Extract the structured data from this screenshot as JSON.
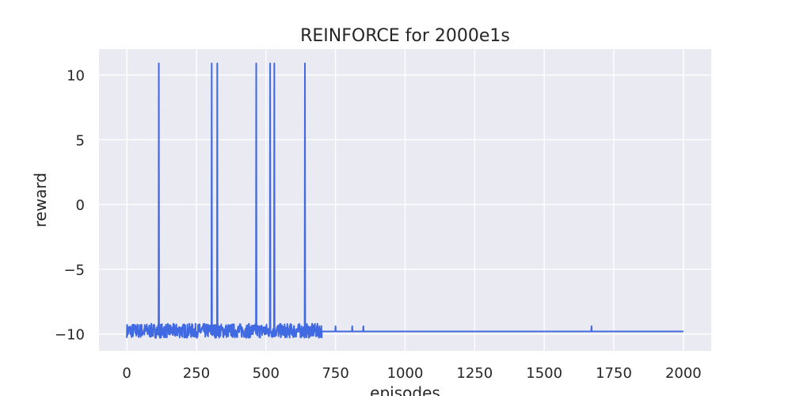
{
  "chart_data": {
    "type": "line",
    "title": "REINFORCE for 2000e1s",
    "xlabel": "episodes",
    "ylabel": "reward",
    "xlim": [
      -100,
      2100
    ],
    "ylim": [
      -11.3,
      12
    ],
    "xticks": [
      0,
      250,
      500,
      750,
      1000,
      1250,
      1500,
      1750,
      2000
    ],
    "xtick_labels": [
      "0",
      "250",
      "500",
      "750",
      "1000",
      "1250",
      "1500",
      "1750",
      "2000"
    ],
    "yticks": [
      10,
      5,
      0,
      -5,
      -10
    ],
    "ytick_labels": [
      "10",
      "5",
      "0",
      "−5",
      "−10"
    ],
    "grid": true,
    "background": "#eaeaf2",
    "grid_color": "#ffffff",
    "series": [
      {
        "color": "#4169e1",
        "baseline": -9.8,
        "noise_range": [
          -10.3,
          -9.2
        ],
        "noise_until_episode": 700,
        "spike_value": 10.9,
        "spike_episodes": [
          115,
          305,
          325,
          465,
          515,
          530,
          640
        ],
        "late_blips": [
          {
            "x": 750,
            "y": -9.4
          },
          {
            "x": 810,
            "y": -9.4
          },
          {
            "x": 850,
            "y": -9.4
          },
          {
            "x": 1670,
            "y": -9.4
          }
        ],
        "x_end": 2000
      }
    ]
  }
}
